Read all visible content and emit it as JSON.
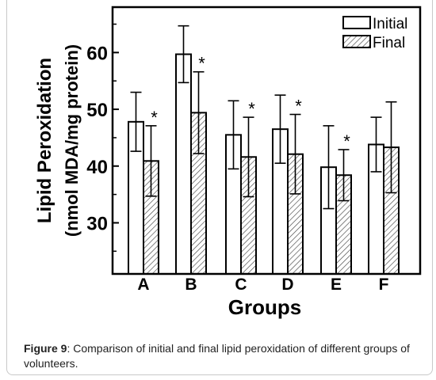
{
  "chart_data": {
    "type": "bar",
    "xlabel": "Groups",
    "ylabel_line1": "Lipid Peroxidation",
    "ylabel_line2": "(nmol MDA/mg protein)",
    "categories": [
      "A",
      "B",
      "C",
      "D",
      "E",
      "F"
    ],
    "ylim": [
      21,
      68
    ],
    "yticks": [
      30,
      40,
      50,
      60
    ],
    "legend_position": "top-right",
    "series": [
      {
        "name": "Initial",
        "pattern": "open",
        "values": [
          47.8,
          59.7,
          45.5,
          46.5,
          39.8,
          43.8
        ],
        "errors": [
          5.2,
          5.0,
          6.0,
          6.0,
          7.3,
          4.8
        ],
        "significant": [
          false,
          false,
          false,
          false,
          false,
          false
        ]
      },
      {
        "name": "Final",
        "pattern": "hatched",
        "values": [
          40.9,
          49.4,
          41.6,
          42.1,
          38.4,
          43.3
        ],
        "errors": [
          6.2,
          7.2,
          7.0,
          7.0,
          4.5,
          8.0
        ],
        "significant": [
          true,
          true,
          true,
          true,
          true,
          false
        ]
      }
    ],
    "significance_marker": "*"
  },
  "caption": {
    "label": "Figure 9",
    "text": ": Comparison of initial and final lipid peroxidation of different groups of volunteers."
  },
  "colors": {
    "bar_stroke": "#000000",
    "bar_fill": "#ffffff",
    "hatch": "#444444",
    "text": "#000000"
  }
}
